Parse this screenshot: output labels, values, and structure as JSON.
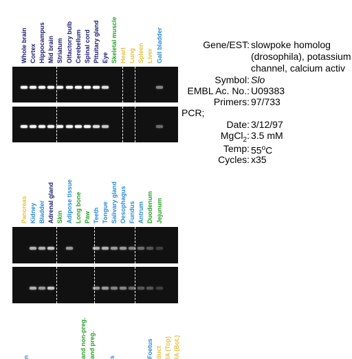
{
  "panel1": {
    "labels": [
      {
        "text": "Whole brain",
        "color": "#1a1a6e"
      },
      {
        "text": "Cortex",
        "color": "#1a1a6e"
      },
      {
        "text": "Hippocampus",
        "color": "#1a1a6e"
      },
      {
        "text": "Mid brain",
        "color": "#1a1a6e"
      },
      {
        "text": "Striatum",
        "color": "#1a1a6e"
      },
      {
        "text": "Olfactory bulb",
        "color": "#1a1a6e"
      },
      {
        "text": "Cerebellum",
        "color": "#1a1a6e"
      },
      {
        "text": "Spinal cord",
        "color": "#1a1a6e"
      },
      {
        "text": "Pituitary gland",
        "color": "#1a1a6e"
      },
      {
        "text": "Eye",
        "color": "#1a1a6e"
      },
      {
        "text": "Skeletal muscle",
        "color": "#2aa02a"
      },
      {
        "text": "Heart",
        "color": "#e8c040"
      },
      {
        "text": "Lung",
        "color": "#e8c040"
      },
      {
        "text": "Spleen",
        "color": "#e8c040"
      },
      {
        "text": "Liver",
        "color": "#e8c040"
      },
      {
        "text": "Gall bladder",
        "color": "#2a8ad0"
      }
    ],
    "gel1_intensity": [
      1,
      1,
      1,
      1,
      1,
      1,
      1,
      1,
      1,
      0.9,
      0,
      0,
      0,
      0,
      0,
      0.5
    ],
    "gel2_intensity": [
      1,
      1,
      1,
      1,
      1,
      1,
      1,
      1,
      0.9,
      0.8,
      0,
      0,
      0,
      0,
      0,
      0.4
    ]
  },
  "panel2": {
    "labels": [
      {
        "text": "Pancreas",
        "color": "#e8c040"
      },
      {
        "text": "Kidney",
        "color": "#2a8ad0"
      },
      {
        "text": "Bladder",
        "color": "#2a8ad0"
      },
      {
        "text": "Adrenal gland",
        "color": "#1a1a6e"
      },
      {
        "text": "Skin",
        "color": "#2aa02a"
      },
      {
        "text": "Adipose tissue",
        "color": "#2a8ad0"
      },
      {
        "text": "Long bone",
        "color": "#2aa02a"
      },
      {
        "text": "Paw",
        "color": "#2aa02a"
      },
      {
        "text": "Teeth",
        "color": "#2a8ad0"
      },
      {
        "text": "Tongue",
        "color": "#2a8ad0"
      },
      {
        "text": "Salivary gland",
        "color": "#2a8ad0"
      },
      {
        "text": "Oesophagus",
        "color": "#2a8ad0"
      },
      {
        "text": "Fundus",
        "color": "#2a8ad0"
      },
      {
        "text": "Antrum",
        "color": "#2a8ad0"
      },
      {
        "text": "Duodenum",
        "color": "#2aa02a"
      },
      {
        "text": "Jejunum",
        "color": "#2aa02a"
      }
    ],
    "gel1_intensity": [
      0,
      0.7,
      0.7,
      0.8,
      0,
      0.6,
      0,
      0,
      0.7,
      0.7,
      0.6,
      0.6,
      0.5,
      0.4,
      0.3,
      0.2
    ],
    "gel2_intensity": [
      0,
      0.7,
      0.6,
      0.8,
      0,
      0,
      0,
      0,
      0.6,
      0.6,
      0.5,
      0.5,
      0.4,
      0.3,
      0.3,
      0.2
    ]
  },
  "panel3": {
    "labels": [
      {
        "text": "n",
        "color": "#2a8ad0"
      },
      {
        "text": "and non-preg.",
        "color": "#2aa02a"
      },
      {
        "text": "and preg.",
        "color": "#2aa02a"
      },
      {
        "text": "s",
        "color": "#2a8ad0"
      },
      {
        "text": "Foetus",
        "color": "#2a8ad0"
      },
      {
        "text": "duct",
        "color": "#e8c040"
      },
      {
        "text": "IA (Top)",
        "color": "#e8c040"
      },
      {
        "text": "IA (Bot.)",
        "color": "#e8c040"
      }
    ]
  },
  "info": {
    "gene_key": "Gene/EST:",
    "gene_line1": "slowpoke homolog",
    "gene_line2": "(drosophila), potassium",
    "gene_line3": "channel, calcium activ",
    "symbol_key": "Symbol:",
    "symbol_val": "Slo",
    "embl_key": "EMBL Ac. No.:",
    "embl_val": "U09383",
    "primers_key": "Primers:",
    "primers_val": "97/733",
    "pcr_key": "PCR;",
    "date_key": "Date:",
    "date_val": "3/12/97",
    "mgcl_key_a": "MgCl",
    "mgcl_key_sub": "2",
    "mgcl_key_b": ":",
    "mgcl_val": "3.5 mM",
    "temp_key": "Temp:",
    "temp_val_a": "55",
    "temp_val_sup": "o",
    "temp_val_b": "C",
    "cycles_key": "Cycles:",
    "cycles_val": "x35"
  }
}
